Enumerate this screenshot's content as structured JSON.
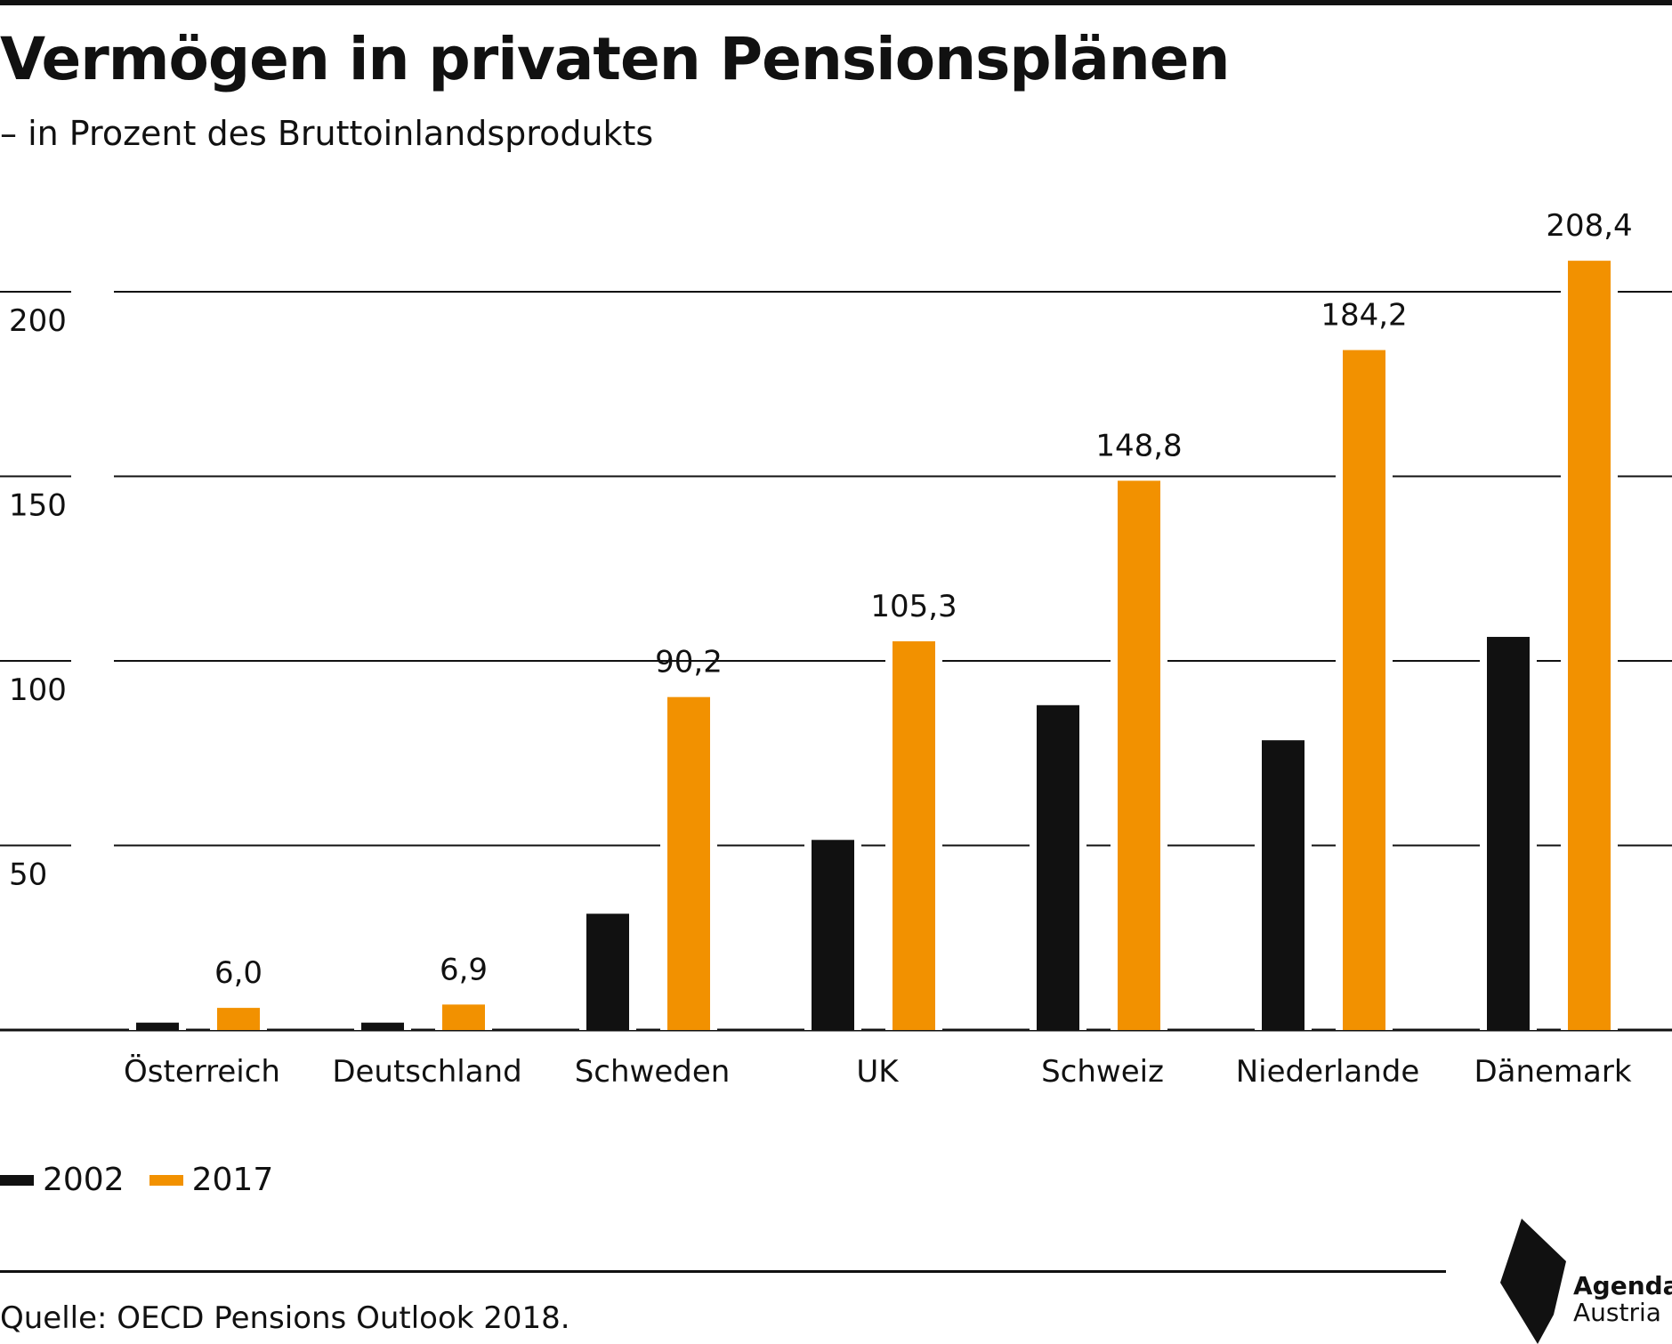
{
  "header": {
    "title": "Vermögen in privaten Pensionsplänen",
    "subtitle": "– in Prozent des Bruttoinlandsprodukts"
  },
  "chart_data": {
    "type": "bar",
    "categories": [
      "Österreich",
      "Deutschland",
      "Schweden",
      "UK",
      "Schweiz",
      "Niederlande",
      "Dänemark"
    ],
    "series": [
      {
        "name": "2002",
        "color": "#111111",
        "values": [
          2.0,
          2.0,
          31.5,
          51.5,
          88.0,
          78.5,
          106.5
        ]
      },
      {
        "name": "2017",
        "color": "#f29100",
        "values": [
          6.0,
          6.9,
          90.2,
          105.3,
          148.8,
          184.2,
          208.4
        ]
      }
    ],
    "data_labels": [
      "6,0",
      "6,9",
      "90,2",
      "105,3",
      "148,8",
      "184,2",
      "208,4"
    ],
    "yticks": [
      50,
      100,
      150,
      200
    ],
    "ytick_labels": [
      "50",
      "100",
      "150",
      "200"
    ],
    "ylim": [
      0,
      210
    ],
    "grid": true,
    "legend": "bottom-left"
  },
  "legend": {
    "items": [
      {
        "label": "2002",
        "color": "#111111"
      },
      {
        "label": "2017",
        "color": "#f29100"
      }
    ]
  },
  "footer": {
    "source": "Quelle: OECD Pensions Outlook 2018."
  },
  "logo": {
    "line1": "Agenda",
    "line2": "Austria"
  }
}
